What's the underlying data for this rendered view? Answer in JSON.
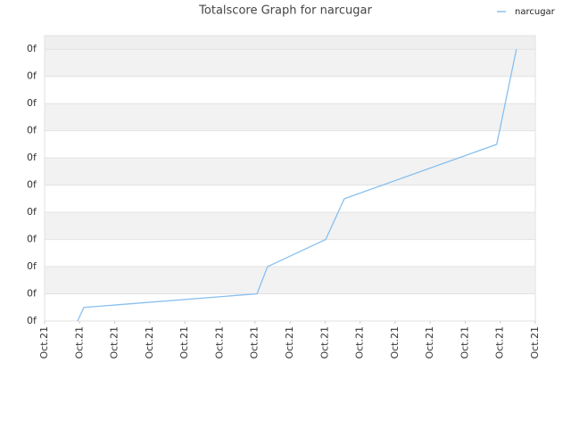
{
  "chart_data": {
    "type": "line",
    "title": "Totalscore Graph for narcugar",
    "x": [
      0.94,
      1.12,
      6.06,
      6.36,
      8.02,
      8.55,
      12.9,
      13.46
    ],
    "series": [
      {
        "name": "narcugar",
        "color": "#88bfee",
        "values": [
          0,
          0.5,
          1,
          2,
          3,
          4.5,
          6.5,
          10
        ]
      }
    ],
    "xlim": [
      0,
      14
    ],
    "xticks": [
      {
        "value": 0,
        "label": "Oct.21"
      },
      {
        "value": 1,
        "label": "Oct.21"
      },
      {
        "value": 2,
        "label": "Oct.21"
      },
      {
        "value": 3,
        "label": "Oct.21"
      },
      {
        "value": 4,
        "label": "Oct.21"
      },
      {
        "value": 5,
        "label": "Oct.21"
      },
      {
        "value": 6,
        "label": "Oct.21"
      },
      {
        "value": 7,
        "label": "Oct.21"
      },
      {
        "value": 8,
        "label": "Oct.21"
      },
      {
        "value": 9,
        "label": "Oct.21"
      },
      {
        "value": 10,
        "label": "Oct.21"
      },
      {
        "value": 11,
        "label": "Oct.21"
      },
      {
        "value": 12,
        "label": "Oct.21"
      },
      {
        "value": 13,
        "label": "Oct.21"
      },
      {
        "value": 14,
        "label": "Oct.21"
      }
    ],
    "ylim": [
      0,
      10.5
    ],
    "yticks": [
      {
        "value": 0,
        "label": "0f"
      },
      {
        "value": 1,
        "label": "0f"
      },
      {
        "value": 2,
        "label": "0f"
      },
      {
        "value": 3,
        "label": "0f"
      },
      {
        "value": 4,
        "label": "0f"
      },
      {
        "value": 5,
        "label": "0f"
      },
      {
        "value": 6,
        "label": "0f"
      },
      {
        "value": 7,
        "label": "0f"
      },
      {
        "value": 8,
        "label": "0f"
      },
      {
        "value": 9,
        "label": "0f"
      },
      {
        "value": 10,
        "label": "0f"
      }
    ],
    "grid": true,
    "legend": "top-right"
  }
}
